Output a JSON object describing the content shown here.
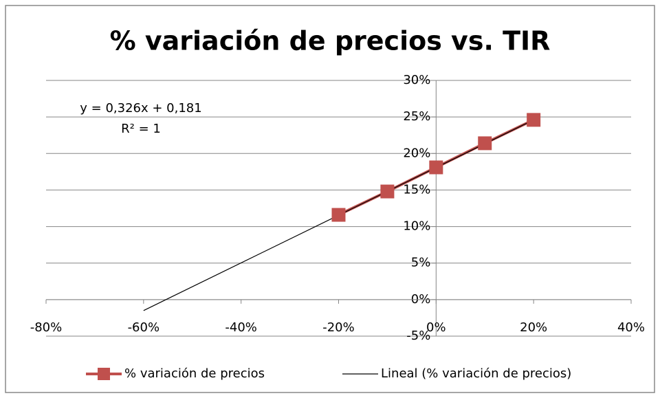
{
  "chart_data": {
    "type": "scatter",
    "title": "% variación de precios vs. TIR",
    "annotations": [
      "y = 0,326x + 0,181",
      "R² = 1"
    ],
    "series": [
      {
        "name": "% variación de precios",
        "color": "#c0504d",
        "marker": "square",
        "x": [
          -20,
          -10,
          0,
          10,
          20
        ],
        "values": [
          11.6,
          14.8,
          18.1,
          21.4,
          24.6
        ]
      },
      {
        "name": "Lineal (% variación de precios)",
        "color": "#000000",
        "x": [
          -60,
          20
        ],
        "values": [
          -1.5,
          24.6
        ]
      }
    ],
    "xlim": [
      -80,
      40
    ],
    "xticks": [
      {
        "value": -80,
        "label": "-80%"
      },
      {
        "value": -60,
        "label": "-60%"
      },
      {
        "value": -40,
        "label": "-40%"
      },
      {
        "value": -20,
        "label": "-20%"
      },
      {
        "value": 0,
        "label": "0%"
      },
      {
        "value": 20,
        "label": "20%"
      },
      {
        "value": 40,
        "label": "40%"
      }
    ],
    "ylim": [
      -5,
      30
    ],
    "yticks": [
      {
        "value": -5,
        "label": "-5%"
      },
      {
        "value": 0,
        "label": "0%"
      },
      {
        "value": 5,
        "label": "5%"
      },
      {
        "value": 10,
        "label": "10%"
      },
      {
        "value": 15,
        "label": "15%"
      },
      {
        "value": 20,
        "label": "20%"
      },
      {
        "value": 25,
        "label": "25%"
      },
      {
        "value": 30,
        "label": "30%"
      }
    ],
    "grid": true,
    "legend": "bottom"
  }
}
